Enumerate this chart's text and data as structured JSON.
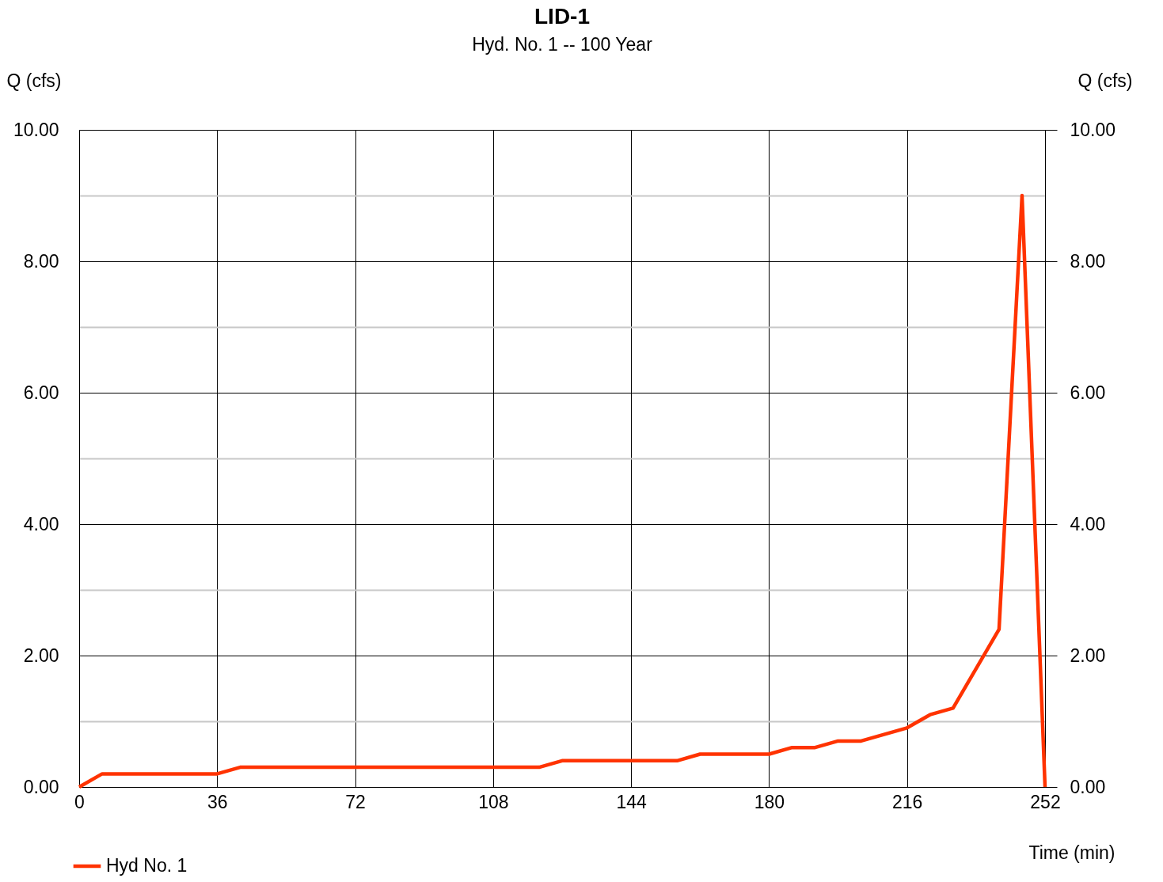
{
  "chart_data": {
    "type": "line",
    "title": "LID-1",
    "subtitle": "Hyd. No. 1 -- 100 Year",
    "xlabel": "Time (min)",
    "ylabel": "Q (cfs)",
    "y2label": "Q (cfs)",
    "x": [
      0,
      6,
      36,
      42,
      120,
      126,
      156,
      162,
      180,
      186,
      192,
      198,
      204,
      216,
      222,
      228,
      240,
      246,
      252
    ],
    "series": [
      {
        "name": "Hyd No. 1",
        "color": "#ff3300",
        "values": [
          0,
          0.2,
          0.2,
          0.3,
          0.3,
          0.4,
          0.4,
          0.5,
          0.5,
          0.6,
          0.6,
          0.7,
          0.7,
          0.9,
          1.1,
          1.2,
          2.4,
          9.0,
          0
        ]
      }
    ],
    "xlim": [
      0,
      252
    ],
    "xticks": [
      0,
      36,
      72,
      108,
      144,
      180,
      216,
      252
    ],
    "ylim": [
      0,
      10
    ],
    "yticks": [
      {
        "value": 0,
        "label": "0.00"
      },
      {
        "value": 1,
        "label": null
      },
      {
        "value": 2,
        "label": "2.00"
      },
      {
        "value": 3,
        "label": null
      },
      {
        "value": 4,
        "label": "4.00"
      },
      {
        "value": 5,
        "label": null
      },
      {
        "value": 6,
        "label": "6.00"
      },
      {
        "value": 7,
        "label": null
      },
      {
        "value": 8,
        "label": "8.00"
      },
      {
        "value": 9,
        "label": null
      },
      {
        "value": 10,
        "label": "10.00"
      }
    ],
    "y2lim": [
      0,
      10
    ],
    "y2ticks": [
      {
        "value": 0,
        "label": "0.00"
      },
      {
        "value": 2,
        "label": "2.00"
      },
      {
        "value": 4,
        "label": "4.00"
      },
      {
        "value": 6,
        "label": "6.00"
      },
      {
        "value": 8,
        "label": "8.00"
      },
      {
        "value": 10,
        "label": "10.00"
      }
    ],
    "grid": true,
    "legend": "bottom left",
    "marker": "none",
    "line_style": "solid"
  }
}
